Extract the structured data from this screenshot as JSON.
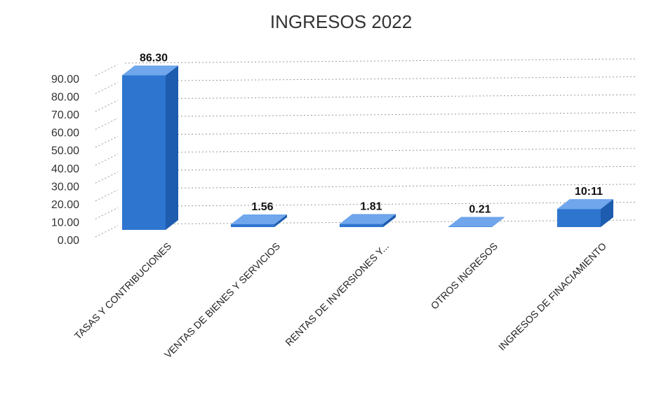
{
  "chart_data": {
    "type": "bar",
    "title": "INGRESOS 2022",
    "xlabel": "",
    "ylabel": "",
    "categories": [
      "TASAS Y CONTRIBUCIONES",
      "VENTAS DE BIENES Y SERVICIOS",
      "RENTAS DE INVERSIONES Y...",
      "OTROS INGRESOS",
      "INGRESOS DE FINACIAMIENTO"
    ],
    "values": [
      86.3,
      1.56,
      1.81,
      0.21,
      10.11
    ],
    "data_labels": [
      "86.30",
      "1.56",
      "1.81",
      "0.21",
      "10:11"
    ],
    "yticks": [
      "0.00",
      "10.00",
      "20.00",
      "30.00",
      "40.00",
      "50.00",
      "60.00",
      "70.00",
      "80.00",
      "90.00"
    ],
    "ylim": [
      0,
      90
    ],
    "grid": true,
    "legend": "none",
    "style": "3d",
    "colors": {
      "bar_front": "#2e75d0",
      "bar_top": "#6fa6ec",
      "bar_side": "#1d5cae"
    }
  }
}
